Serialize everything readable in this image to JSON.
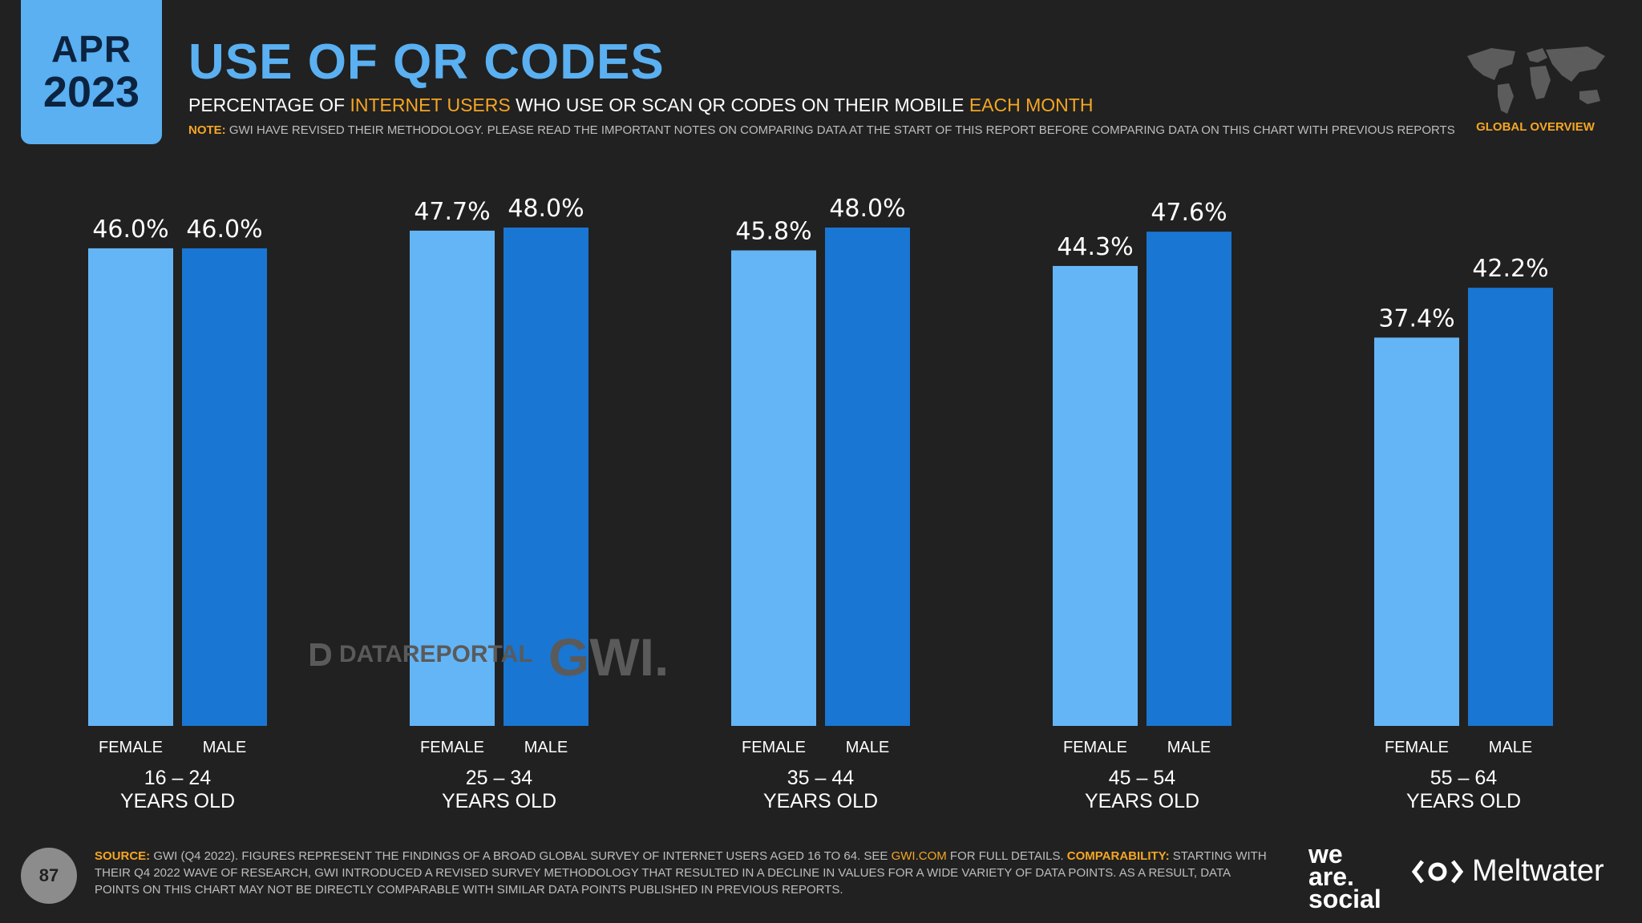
{
  "header": {
    "month": "APR",
    "year": "2023",
    "title": "USE OF QR CODES",
    "subtitle_pre": "PERCENTAGE OF ",
    "subtitle_hl1": "INTERNET USERS",
    "subtitle_mid": " WHO USE OR SCAN QR CODES ON THEIR MOBILE ",
    "subtitle_hl2": "EACH MONTH",
    "note_label": "NOTE:",
    "note_text": " GWI HAVE REVISED THEIR METHODOLOGY. PLEASE READ THE IMPORTANT NOTES ON COMPARING DATA AT THE START OF THIS REPORT BEFORE COMPARING DATA ON THIS CHART WITH PREVIOUS REPORTS",
    "global_label": "GLOBAL OVERVIEW"
  },
  "watermarks": {
    "datareportal": "DATAREPORTAL",
    "gwi": "GWI."
  },
  "footer": {
    "page_number": "87",
    "source_label": "SOURCE:",
    "source_text_1": " GWI (Q4 2022). FIGURES REPRESENT THE FINDINGS OF A BROAD GLOBAL SURVEY OF INTERNET USERS AGED 16 TO 64. SEE ",
    "source_link": "GWI.COM",
    "source_text_2": " FOR FULL DETAILS. ",
    "comparability_label": "COMPARABILITY:",
    "comparability_text": " STARTING WITH THEIR Q4 2022 WAVE OF RESEARCH, GWI INTRODUCED A REVISED SURVEY METHODOLOGY THAT RESULTED IN A DECLINE IN VALUES FOR A WIDE VARIETY OF DATA POINTS. AS A RESULT, DATA POINTS ON THIS CHART MAY NOT BE DIRECTLY COMPARABLE WITH SIMILAR DATA POINTS PUBLISHED IN PREVIOUS REPORTS.",
    "brand_1_line1": "we",
    "brand_1_line2": "are.",
    "brand_1_line3": "social",
    "brand_2": "Meltwater"
  },
  "chart_data": {
    "type": "bar",
    "categories": [
      [
        "16 – 24",
        "YEARS OLD"
      ],
      [
        "25 – 34",
        "YEARS OLD"
      ],
      [
        "35 – 44",
        "YEARS OLD"
      ],
      [
        "45 – 54",
        "YEARS OLD"
      ],
      [
        "55 – 64",
        "YEARS OLD"
      ]
    ],
    "series": [
      {
        "name": "FEMALE",
        "color": "#64b5f6",
        "values": [
          46.0,
          47.7,
          45.8,
          44.3,
          37.4
        ],
        "labels": [
          "46.0%",
          "47.7%",
          "45.8%",
          "44.3%",
          "37.4%"
        ]
      },
      {
        "name": "MALE",
        "color": "#1976d2",
        "values": [
          46.0,
          48.0,
          48.0,
          47.6,
          42.2
        ],
        "labels": [
          "46.0%",
          "48.0%",
          "48.0%",
          "47.6%",
          "42.2%"
        ]
      }
    ],
    "ylim": [
      0,
      48.0
    ]
  }
}
